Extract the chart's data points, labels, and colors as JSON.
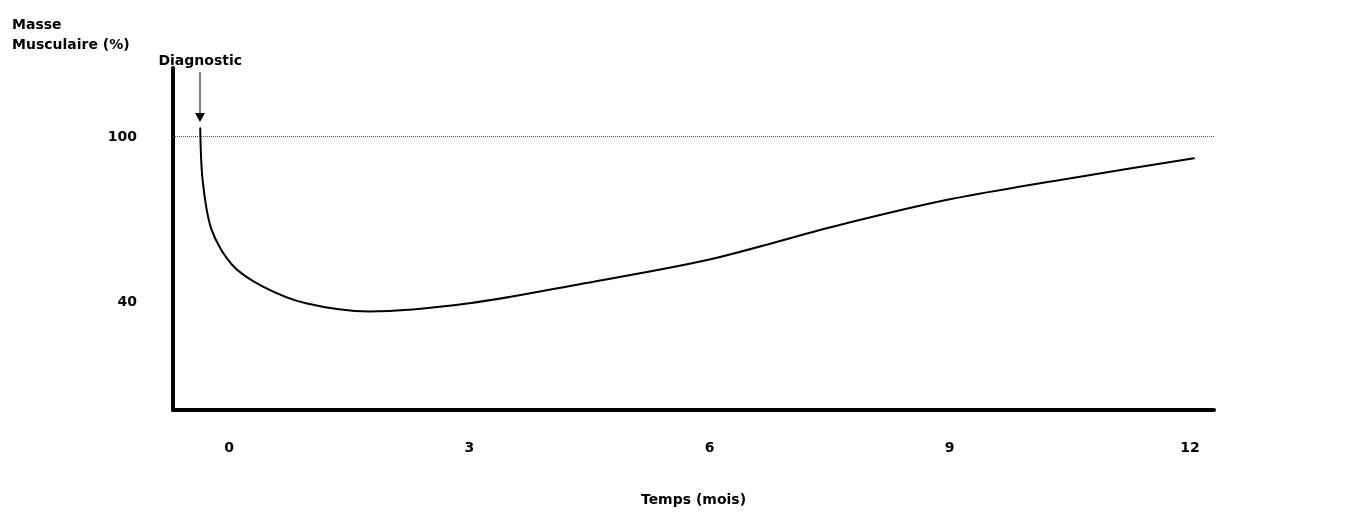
{
  "chart_data": {
    "type": "line",
    "xlabel": "Temps (mois)",
    "ylabel": "Masse Musculaire (%)",
    "series": [
      {
        "color": "#000000",
        "x": [
          -0.36,
          -0.33,
          -0.22,
          0.04,
          0.43,
          0.96,
          1.75,
          3,
          4.38,
          6,
          7.54,
          9,
          10.57,
          12.05
        ],
        "values": [
          103,
          84,
          66,
          53,
          45,
          39,
          36,
          39,
          46,
          55,
          67,
          77,
          85,
          92
        ]
      }
    ],
    "xlim": [
      -0.7,
      12.3
    ],
    "xticks": [
      0,
      3,
      6,
      9,
      12
    ],
    "ylim": [
      0,
      125
    ],
    "yticks": [
      40,
      100
    ],
    "ref_lines": [
      {
        "axis": "y",
        "value": 100,
        "color": "#555555",
        "line_style": "dotted"
      }
    ],
    "annotations": [
      {
        "text": "Diagnostic",
        "x": -0.36
      }
    ],
    "grid": false,
    "marker": "none",
    "line_style": "solid"
  }
}
